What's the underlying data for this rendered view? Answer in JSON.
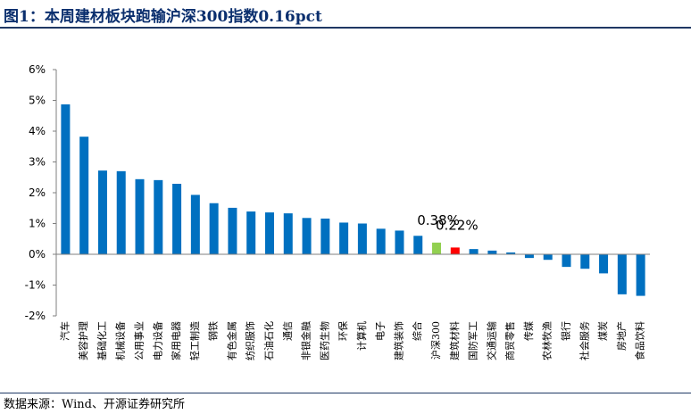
{
  "header": {
    "title": "图1：本周建材板块跑输沪深300指数0.16pct"
  },
  "footer": {
    "source": "数据来源：Wind、开源证券研究所"
  },
  "chart_data": {
    "type": "bar",
    "title": "",
    "xlabel": "",
    "ylabel": "",
    "ylim": [
      -2,
      6
    ],
    "yticks": [
      -2,
      -1,
      0,
      1,
      2,
      3,
      4,
      5,
      6
    ],
    "ytick_labels": [
      "-2%",
      "-1%",
      "0%",
      "1%",
      "2%",
      "3%",
      "4%",
      "5%",
      "6%"
    ],
    "grid": false,
    "legend": "none",
    "categories": [
      "汽车",
      "美容护理",
      "基础化工",
      "机械设备",
      "公用事业",
      "电力设备",
      "家用电器",
      "轻工制造",
      "钢铁",
      "有色金属",
      "纺织服饰",
      "石油石化",
      "通信",
      "非银金融",
      "医药生物",
      "环保",
      "计算机",
      "电子",
      "建筑装饰",
      "综合",
      "沪深300",
      "建筑材料",
      "国防军工",
      "交通运输",
      "商贸零售",
      "传媒",
      "农林牧渔",
      "银行",
      "社会服务",
      "煤炭",
      "房地产",
      "食品饮料"
    ],
    "values": [
      4.87,
      3.82,
      2.72,
      2.7,
      2.44,
      2.41,
      2.29,
      1.93,
      1.66,
      1.51,
      1.39,
      1.36,
      1.33,
      1.18,
      1.16,
      1.03,
      1.0,
      0.83,
      0.77,
      0.6,
      0.38,
      0.22,
      0.17,
      0.12,
      0.06,
      -0.12,
      -0.18,
      -0.41,
      -0.47,
      -0.62,
      -1.3,
      -1.35
    ],
    "colors": {
      "default": "#0070c0",
      "benchmark": "#92d050",
      "sector": "#ff0000"
    },
    "highlight": {
      "沪深300": "benchmark",
      "建筑材料": "sector"
    },
    "data_labels": [
      {
        "category": "沪深300",
        "text": "0.38%"
      },
      {
        "category": "建筑材料",
        "text": "0.22%"
      }
    ]
  }
}
